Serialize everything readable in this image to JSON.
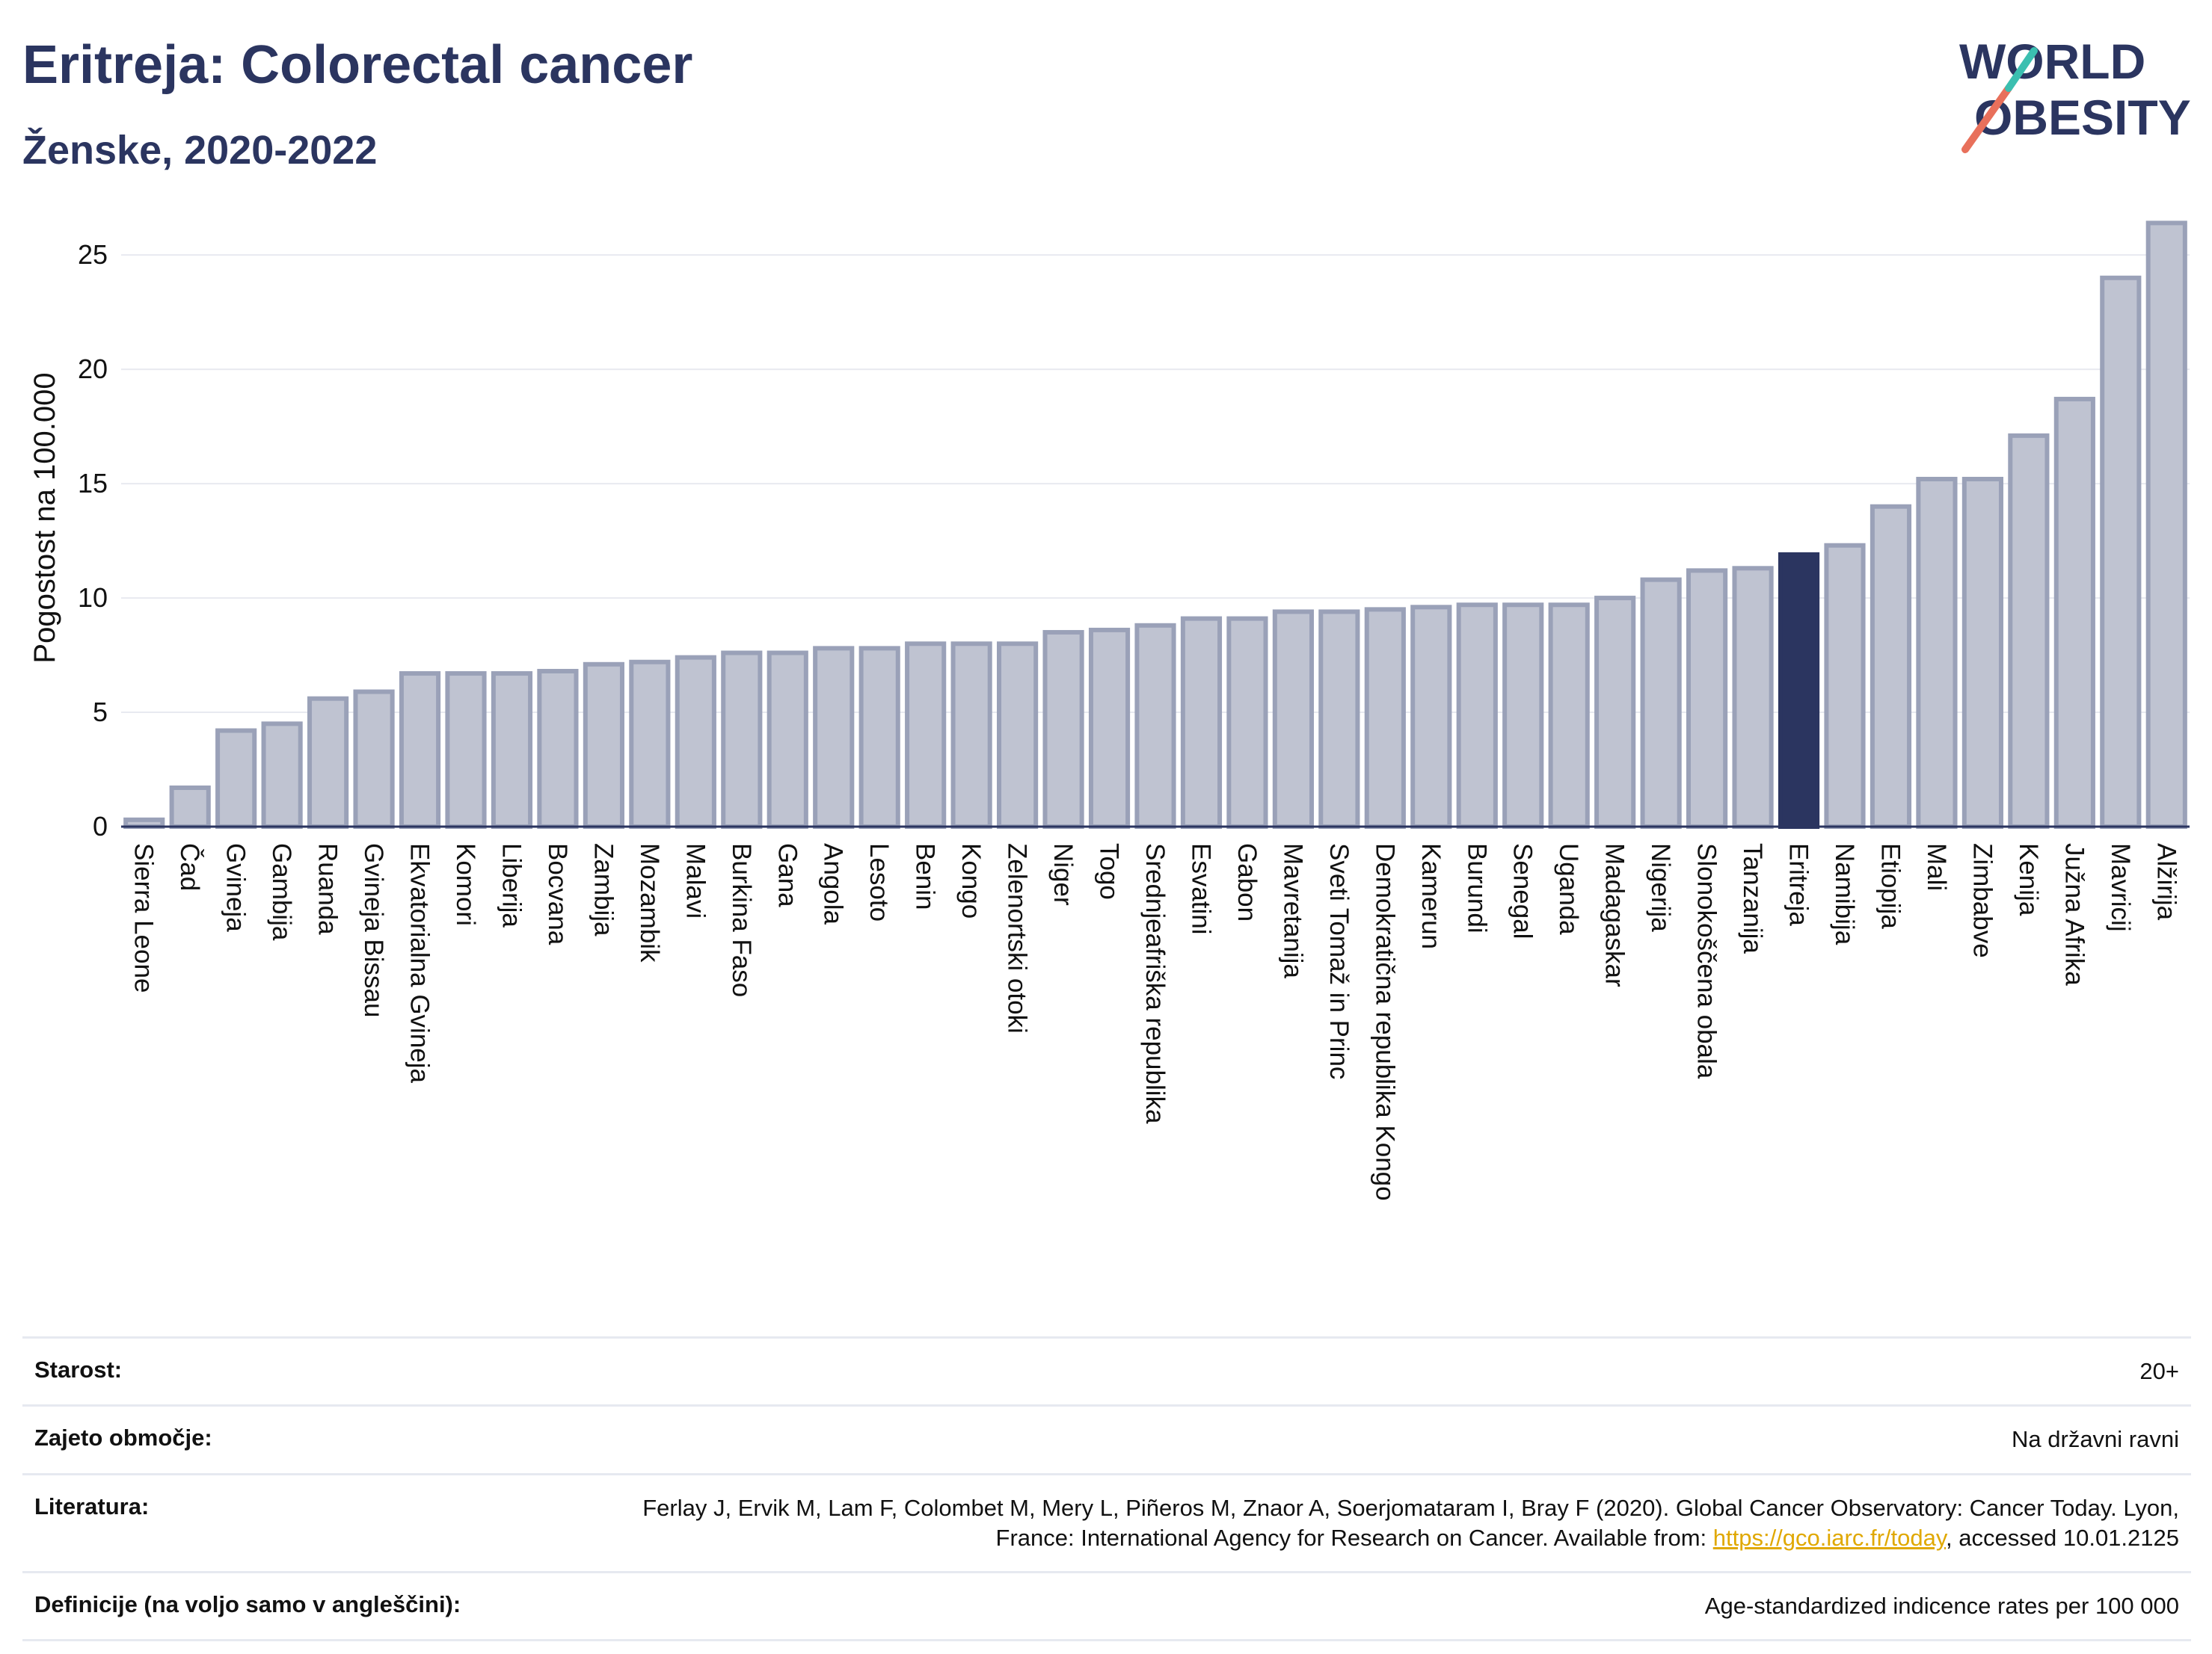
{
  "header": {
    "title": "Eritreja: Colorectal cancer",
    "subtitle": "Ženske, 2020-2022"
  },
  "logo": {
    "line1": "WORLD",
    "line2": "OBESITY"
  },
  "colors": {
    "bar": "#bfc3d1",
    "bar_stroke": "#9aa1b8",
    "highlight": "#2b3560",
    "text": "#2b3560"
  },
  "chart_data": {
    "type": "bar",
    "ylabel": "Pogostost na 100.000",
    "ylim": [
      0,
      27
    ],
    "yticks": [
      0,
      5,
      10,
      15,
      20,
      25
    ],
    "grid": true,
    "highlight": "Eritreja",
    "categories": [
      "Sierra Leone",
      "Čad",
      "Gvineja",
      "Gambija",
      "Ruanda",
      "Gvineja Bissau",
      "Ekvatorialna Gvineja",
      "Komori",
      "Liberija",
      "Bocvana",
      "Zambija",
      "Mozambik",
      "Malavi",
      "Burkina Faso",
      "Gana",
      "Angola",
      "Lesoto",
      "Benin",
      "Kongo",
      "Zelenortski otoki",
      "Niger",
      "Togo",
      "Srednjeafriška republika",
      "Esvatini",
      "Gabon",
      "Mavretanija",
      "Sveti Tomaž in Princ",
      "Demokratična republika Kongo",
      "Kamerun",
      "Burundi",
      "Senegal",
      "Uganda",
      "Madagaskar",
      "Nigerija",
      "Slonokoščena obala",
      "Tanzanija",
      "Eritreja",
      "Namibija",
      "Etiopija",
      "Mali",
      "Zimbabve",
      "Kenija",
      "Južna Afrika",
      "Mavricij",
      "Alžirija"
    ],
    "values": [
      0.3,
      1.7,
      4.2,
      4.5,
      5.6,
      5.9,
      6.7,
      6.7,
      6.7,
      6.8,
      7.1,
      7.2,
      7.4,
      7.6,
      7.6,
      7.8,
      7.8,
      8.0,
      8.0,
      8.0,
      8.5,
      8.6,
      8.8,
      9.1,
      9.1,
      9.4,
      9.4,
      9.5,
      9.6,
      9.7,
      9.7,
      9.7,
      10.0,
      10.8,
      11.2,
      11.3,
      11.9,
      12.3,
      14.0,
      15.2,
      15.2,
      17.1,
      18.7,
      24.0,
      26.4
    ]
  },
  "info": {
    "age_label": "Starost:",
    "age_value": "20+",
    "area_label": "Zajeto območje:",
    "area_value": "Na državni ravni",
    "ref_label": "Literatura:",
    "ref_text": "Ferlay J, Ervik M, Lam F, Colombet M, Mery L, Piñeros M, Znaor A, Soerjomataram I, Bray F (2020). Global Cancer Observatory: Cancer Today. Lyon, France: International Agency for Research on Cancer. Available from: ",
    "ref_link": "https://gco.iarc.fr/today",
    "ref_tail": ", accessed 10.01.2125",
    "def_label": "Definicije (na voljo samo v angleščini):",
    "def_value": "Age-standardized indicence rates per 100 000"
  }
}
